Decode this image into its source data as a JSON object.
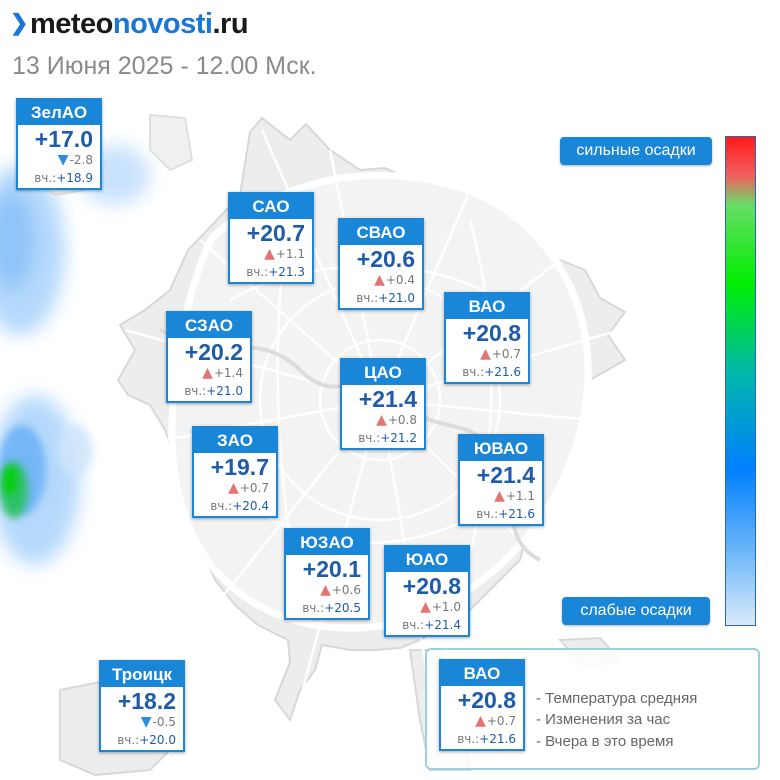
{
  "header": {
    "logo_prefix": "meteo",
    "logo_accent": "novosti",
    "logo_suffix": ".ru",
    "subtitle": "13 Июня 2025 - 12.00 Мск."
  },
  "colors": {
    "card_accent": "#1a86d8",
    "temperature_text": "#1e5ba8",
    "increase_arrow": "#e57373",
    "decrease_arrow": "#2b8de0"
  },
  "yesterday_label": "вч.:",
  "districts": [
    {
      "name": "ЗелАО",
      "temp": "+17.0",
      "change": "-2.8",
      "trend": "down",
      "yesterday": "+18.9"
    },
    {
      "name": "САО",
      "temp": "+20.7",
      "change": "+1.1",
      "trend": "up",
      "yesterday": "+21.3"
    },
    {
      "name": "СВАО",
      "temp": "+20.6",
      "change": "+0.4",
      "trend": "up",
      "yesterday": "+21.0"
    },
    {
      "name": "ВАО",
      "temp": "+20.8",
      "change": "+0.7",
      "trend": "up",
      "yesterday": "+21.6"
    },
    {
      "name": "СЗАО",
      "temp": "+20.2",
      "change": "+1.4",
      "trend": "up",
      "yesterday": "+21.0"
    },
    {
      "name": "ЦАО",
      "temp": "+21.4",
      "change": "+0.8",
      "trend": "up",
      "yesterday": "+21.2"
    },
    {
      "name": "ЗАО",
      "temp": "+19.7",
      "change": "+0.7",
      "trend": "up",
      "yesterday": "+20.4"
    },
    {
      "name": "ЮВАО",
      "temp": "+21.4",
      "change": "+1.1",
      "trend": "up",
      "yesterday": "+21.6"
    },
    {
      "name": "ЮЗАО",
      "temp": "+20.1",
      "change": "+0.6",
      "trend": "up",
      "yesterday": "+20.5"
    },
    {
      "name": "ЮАО",
      "temp": "+20.8",
      "change": "+1.0",
      "trend": "up",
      "yesterday": "+21.4"
    },
    {
      "name": "Троицк",
      "temp": "+18.2",
      "change": "-0.5",
      "trend": "down",
      "yesterday": "+20.0"
    }
  ],
  "precip_scale": {
    "top_label": "сильные осадки",
    "bottom_label": "слабые осадки",
    "colors": [
      "#ff1a1a",
      "#00ee00",
      "#0080ff",
      "#d8ebfc"
    ]
  },
  "legend": {
    "sample": {
      "name": "ВАО",
      "temp": "+20.8",
      "change": "+0.7",
      "trend": "up",
      "yesterday": "+21.6"
    },
    "lines": [
      "- Температура средняя",
      "- Изменения за час",
      "- Вчера в это время"
    ]
  }
}
